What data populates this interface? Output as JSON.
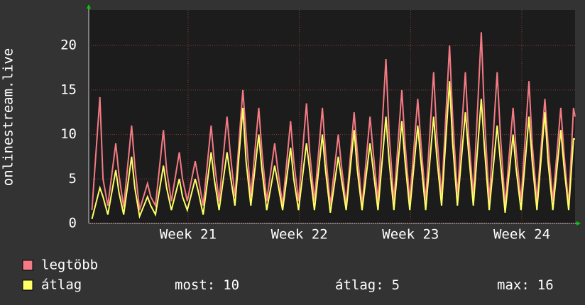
{
  "chart_data": {
    "type": "line",
    "ylabel": "onlinestream.live",
    "x": [
      0.2,
      0.7,
      0.9,
      1.2,
      1.7,
      1.9,
      2.2,
      2.7,
      2.9,
      3.2,
      3.7,
      3.9,
      4.2,
      4.7,
      4.9,
      5.2,
      5.7,
      5.9,
      6.2,
      6.7,
      6.9,
      7.2,
      7.7,
      7.9,
      8.2,
      8.7,
      8.9,
      9.2,
      9.7,
      9.9,
      10.2,
      10.7,
      10.9,
      11.2,
      11.7,
      11.9,
      12.2,
      12.7,
      12.9,
      13.2,
      13.7,
      13.9,
      14.2,
      14.7,
      14.9,
      15.2,
      15.7,
      15.9,
      16.2,
      16.7,
      16.9,
      17.2,
      17.7,
      17.9,
      18.2,
      18.7,
      18.9,
      19.2,
      19.7,
      19.9,
      20.2,
      20.7,
      20.9,
      21.2,
      21.7,
      21.9,
      22.2,
      22.7,
      22.9,
      23.2,
      23.7,
      23.9,
      24.2,
      24.7,
      24.9,
      25.2,
      25.7,
      25.9,
      26.2,
      26.7,
      26.9,
      27.2,
      27.7,
      27.9,
      28.2,
      28.7,
      28.9,
      29.2,
      29.7,
      29.9,
      30.2,
      30.5,
      30.6
    ],
    "series": [
      {
        "name": "legtöbb",
        "color": "#f47a83",
        "values": [
          1.5,
          14.2,
          5,
          2,
          9,
          5.5,
          1.8,
          11,
          6.5,
          1.5,
          4.5,
          3,
          2,
          10.5,
          6,
          2.5,
          8,
          5,
          2.5,
          7,
          5,
          2,
          11,
          7,
          2.5,
          12,
          8,
          3,
          15,
          10,
          3,
          13,
          8,
          2.5,
          9,
          6,
          2,
          11.5,
          7,
          2.5,
          13.5,
          8,
          2.5,
          13,
          8,
          2,
          10,
          6.5,
          2,
          12.5,
          8,
          2,
          12,
          8,
          2.5,
          18.5,
          10,
          2.5,
          15,
          9,
          2.5,
          14,
          9,
          2.5,
          17,
          10,
          3,
          20,
          12,
          3,
          17,
          10,
          3,
          21.5,
          12,
          2.5,
          17,
          10,
          2,
          13,
          8,
          2.5,
          16,
          9,
          2.5,
          14,
          9,
          2.5,
          13,
          8,
          2,
          13,
          12
        ]
      },
      {
        "name": "átlag",
        "color": "#ffff66",
        "values": [
          0.5,
          4,
          3,
          1,
          6,
          3.5,
          1,
          7.5,
          4,
          0.8,
          3,
          2,
          1,
          6.5,
          4,
          1.5,
          5,
          3,
          1.5,
          5,
          3.5,
          1,
          8,
          5,
          1.5,
          8,
          5.5,
          2,
          13,
          7,
          2,
          10,
          6,
          1.5,
          6.5,
          4.5,
          1.5,
          8.5,
          5,
          1.5,
          9,
          6,
          1.5,
          10,
          6,
          1.2,
          7.5,
          5,
          1.5,
          10.5,
          6,
          1.5,
          9,
          6,
          1.5,
          12,
          7,
          1.5,
          11.5,
          7,
          1.5,
          11,
          7,
          1.5,
          12,
          7.5,
          2,
          16,
          9,
          2,
          12.5,
          8,
          2,
          14,
          8.5,
          1.5,
          11,
          7,
          1.2,
          10,
          6,
          1.5,
          12,
          7,
          1.5,
          12.5,
          7,
          1.5,
          10.5,
          6.5,
          1.5,
          9.5,
          9.5
        ]
      }
    ],
    "xlim": [
      0,
      30.6
    ],
    "xticks": [
      {
        "value": 6.25,
        "label": "Week 21"
      },
      {
        "value": 13.25,
        "label": "Week 22"
      },
      {
        "value": 20.25,
        "label": "Week 23"
      },
      {
        "value": 27.25,
        "label": "Week 24"
      }
    ],
    "ylim": [
      0,
      24
    ],
    "yticks": [
      0,
      5,
      10,
      15,
      20
    ],
    "grid": true,
    "stats": [
      {
        "label": "most:",
        "value": 10
      },
      {
        "label": "átlag:",
        "value": 5
      },
      {
        "label": "max:",
        "value": 16
      }
    ]
  }
}
